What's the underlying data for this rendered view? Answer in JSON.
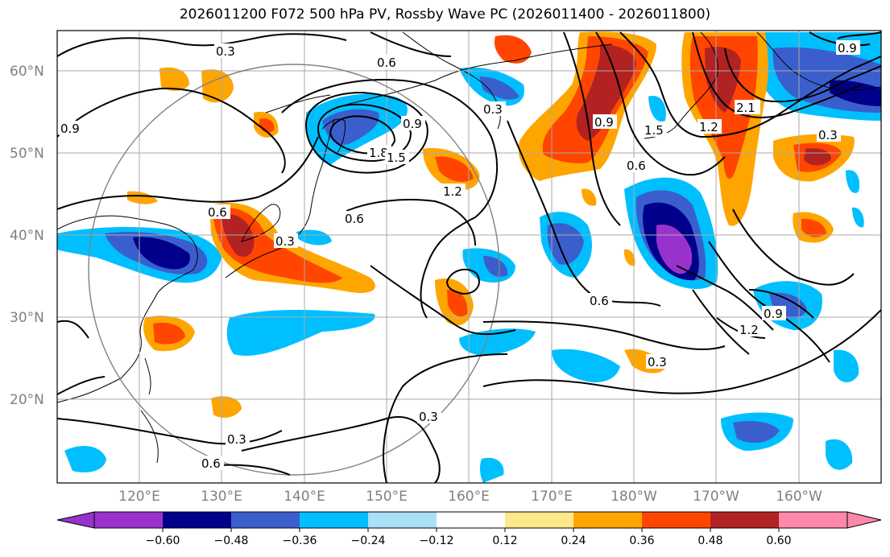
{
  "title": "2026011200 F072 500 hPa PV, Rossby Wave PC (2026011400 - 2026011800)",
  "map": {
    "lat_labels": [
      "60°N",
      "50°N",
      "40°N",
      "30°N",
      "20°N"
    ],
    "lon_labels": [
      "120°E",
      "130°E",
      "140°E",
      "150°E",
      "160°E",
      "170°E",
      "180°W",
      "170°W",
      "160°W"
    ],
    "contour_labels": [
      "0.3",
      "0.6",
      "0.9",
      "1.2",
      "1.5",
      "1.8",
      "2.1"
    ],
    "colors": {
      "pos_light": "#ffe88a",
      "pos_1": "#ffa500",
      "pos_2": "#ff4500",
      "pos_3": "#b22222",
      "neg_light": "#aadff7",
      "neg_1": "#00bfff",
      "neg_2": "#3a5fcd",
      "neg_3": "#00008b",
      "neg_4": "#9932cc"
    }
  },
  "colorbar": {
    "ticks": [
      "−0.60",
      "−0.48",
      "−0.36",
      "−0.24",
      "−0.12",
      "0.12",
      "0.24",
      "0.36",
      "0.48",
      "0.60"
    ],
    "colors": [
      "#9932cc",
      "#00008b",
      "#3a5fcd",
      "#00bfff",
      "#aadff7",
      "#ffffff",
      "#ffe88a",
      "#ffa500",
      "#ff4500",
      "#b22222",
      "#ff88aa"
    ]
  }
}
